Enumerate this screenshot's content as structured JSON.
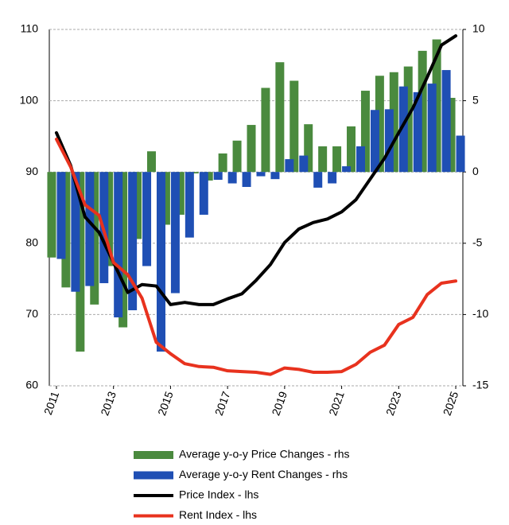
{
  "chart_data": {
    "type": "combo",
    "x": [
      2011,
      2011.5,
      2012,
      2012.5,
      2013,
      2013.5,
      2014,
      2014.5,
      2015,
      2015.5,
      2016,
      2016.5,
      2017,
      2017.5,
      2018,
      2018.5,
      2019,
      2019.5,
      2020,
      2020.5,
      2021,
      2021.5,
      2022,
      2022.5,
      2023,
      2023.5,
      2024,
      2024.5,
      2025
    ],
    "xlim": [
      2010.75,
      2025.25
    ],
    "xticks": [
      2011,
      2013,
      2015,
      2017,
      2019,
      2021,
      2023,
      2025
    ],
    "ylim": [
      60,
      110
    ],
    "yticks": [
      60,
      70,
      80,
      90,
      100,
      110
    ],
    "y2lim": [
      -15,
      10
    ],
    "y2ticks": [
      -15,
      -10,
      -5,
      0,
      5,
      10
    ],
    "grid": true,
    "legend": "bottom",
    "series": [
      {
        "name": "Average y-o-y Price Changes - rhs",
        "type": "bar",
        "axis": "y2",
        "color": "#4a8a3e",
        "values": [
          -6.0,
          -8.1,
          -12.6,
          -9.3,
          -6.6,
          -10.9,
          -4.7,
          1.45,
          -3.7,
          -3.0,
          -0.1,
          -0.6,
          1.3,
          2.2,
          3.3,
          5.9,
          7.7,
          6.4,
          3.35,
          1.8,
          1.8,
          3.2,
          5.7,
          6.75,
          7.0,
          7.4,
          8.5,
          9.3,
          5.2
        ]
      },
      {
        "name": "Average y-o-y Rent Changes - rhs",
        "type": "bar",
        "axis": "y2",
        "color": "#1f4fb4",
        "values": [
          -6.1,
          -8.4,
          -8.0,
          -7.8,
          -10.2,
          -9.7,
          -6.6,
          -12.6,
          -8.5,
          -4.6,
          -3.0,
          -0.55,
          -0.8,
          -1.05,
          -0.3,
          -0.5,
          0.9,
          1.15,
          -1.1,
          -0.8,
          0.4,
          1.8,
          4.35,
          4.4,
          6.0,
          5.6,
          6.2,
          7.15,
          2.55
        ]
      },
      {
        "name": "Price Index - lhs",
        "type": "line",
        "color": "#000000",
        "values": [
          95.5,
          90.9,
          83.7,
          81.5,
          77.3,
          73.1,
          74.2,
          74.0,
          71.4,
          71.7,
          71.4,
          71.4,
          72.2,
          72.9,
          74.8,
          77.0,
          80.1,
          82.0,
          82.9,
          83.4,
          84.4,
          86.1,
          89.0,
          91.9,
          95.5,
          99.0,
          103.3,
          107.8,
          109.1
        ]
      },
      {
        "name": "Rent Index - lhs",
        "type": "line",
        "color": "#e8321e",
        "values": [
          94.6,
          90.7,
          85.4,
          83.9,
          77.3,
          75.6,
          72.3,
          66.1,
          64.5,
          63.1,
          62.7,
          62.6,
          62.1,
          62.0,
          61.9,
          61.6,
          62.5,
          62.3,
          61.9,
          61.9,
          62.0,
          63.0,
          64.7,
          65.7,
          68.6,
          69.6,
          72.8,
          74.4,
          74.7
        ]
      }
    ]
  }
}
